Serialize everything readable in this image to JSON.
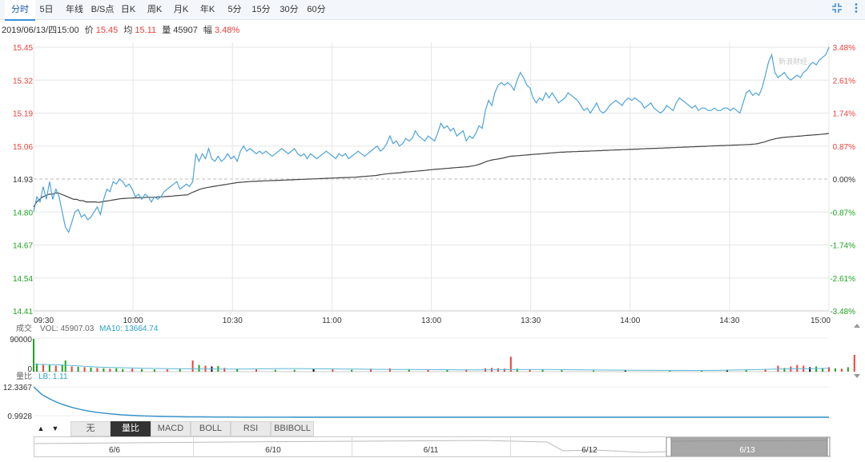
{
  "tabs": [
    "分时",
    "5日",
    "年线",
    "B/S点",
    "日K",
    "周K",
    "月K",
    "年K",
    "5分",
    "15分",
    "30分",
    "60分"
  ],
  "toolbar": {
    "collapse_icon": "collapse-icon",
    "more_icon": "more-icon"
  },
  "info": {
    "datetime": "2019/06/13/四15:00",
    "price_label": "价",
    "price": "15.45",
    "avg_label": "均",
    "avg": "15.11",
    "vol_label": "量",
    "vol": "45907",
    "pct_label": "幅",
    "pct": "3.48%"
  },
  "watermark": "新浪财经",
  "colors": {
    "price_line": "#4fa3d9",
    "avg_line": "#444444",
    "up": "#e8413b",
    "down": "#1ea21e",
    "flat": "#111111"
  },
  "chart_data": {
    "type": "line",
    "x_ticks": [
      "09:30",
      "10:00",
      "10:30",
      "11:00",
      "13:00",
      "13:30",
      "14:00",
      "14:30",
      "15:00"
    ],
    "y_ticks": [
      "15.45",
      "15.32",
      "15.19",
      "15.06",
      "14.93",
      "14.80",
      "14.67",
      "14.54",
      "14.41"
    ],
    "y_ticks_right": [
      "3.48%",
      "2.61%",
      "1.74%",
      "0.87%",
      "0.00%",
      "-0.87%",
      "-1.74%",
      "-2.61%",
      "-3.48%"
    ],
    "ylim": [
      14.41,
      15.45
    ],
    "prev_close": 14.93,
    "series": [
      {
        "values": [
          14.8,
          14.86,
          14.84,
          14.9,
          14.85,
          14.92,
          14.85,
          14.89,
          14.86,
          14.8,
          14.74,
          14.72,
          14.76,
          14.8,
          14.81,
          14.78,
          14.79,
          14.77,
          14.78,
          14.8,
          14.82,
          14.79,
          14.85,
          14.89,
          14.88,
          14.92,
          14.91,
          14.93,
          14.92,
          14.9,
          14.91,
          14.89,
          14.86,
          14.87,
          14.85,
          14.87,
          14.86,
          14.84,
          14.86,
          14.85,
          14.86,
          14.88,
          14.89,
          14.9,
          14.91,
          14.92,
          14.89,
          14.9,
          14.91,
          14.9,
          14.92,
          15.03,
          15.0,
          15.03,
          15.01,
          15.05,
          15.01,
          15.0,
          15.02,
          15.0,
          15.01,
          15.03,
          15.01,
          15.02,
          15.0,
          15.04,
          15.06,
          15.04,
          15.05,
          15.04,
          15.03,
          15.04,
          15.03,
          15.04,
          15.03,
          15.02,
          15.03,
          15.04,
          15.05,
          15.04,
          15.03,
          15.04,
          15.05,
          15.03,
          15.02,
          15.03,
          15.01,
          15.03,
          15.02,
          15.01,
          15.02,
          15.03,
          15.04,
          15.03,
          15.02,
          15.01,
          15.03,
          15.02,
          15.03,
          15.01,
          15.02,
          15.03,
          15.04,
          15.03,
          15.02,
          15.03,
          15.04,
          15.05,
          15.06,
          15.04,
          15.05,
          15.07,
          15.1,
          15.07,
          15.08,
          15.06,
          15.07,
          15.09,
          15.08,
          15.09,
          15.12,
          15.1,
          15.09,
          15.08,
          15.1,
          15.09,
          15.08,
          15.11,
          15.15,
          15.13,
          15.14,
          15.12,
          15.13,
          15.1,
          15.11,
          15.12,
          15.08,
          15.1,
          15.09,
          15.11,
          15.14,
          15.13,
          15.2,
          15.24,
          15.22,
          15.27,
          15.3,
          15.31,
          15.3,
          15.31,
          15.3,
          15.28,
          15.32,
          15.35,
          15.33,
          15.3,
          15.29,
          15.25,
          15.23,
          15.25,
          15.24,
          15.27,
          15.25,
          15.27,
          15.25,
          15.23,
          15.24,
          15.25,
          15.27,
          15.26,
          15.25,
          15.24,
          15.22,
          15.2,
          15.21,
          15.19,
          15.21,
          15.23,
          15.2,
          15.19,
          15.2,
          15.22,
          15.23,
          15.24,
          15.23,
          15.22,
          15.24,
          15.25,
          15.24,
          15.25,
          15.24,
          15.23,
          15.21,
          15.22,
          15.23,
          15.21,
          15.2,
          15.19,
          15.2,
          15.22,
          15.21,
          15.2,
          15.23,
          15.25,
          15.24,
          15.23,
          15.22,
          15.21,
          15.22,
          15.2,
          15.21,
          15.21,
          15.2,
          15.2,
          15.21,
          15.2,
          15.2,
          15.21,
          15.21,
          15.2,
          15.21,
          15.2,
          15.19,
          15.23,
          15.27,
          15.28,
          15.26,
          15.27,
          15.26,
          15.29,
          15.34,
          15.39,
          15.42,
          15.35,
          15.33,
          15.34,
          15.35,
          15.33,
          15.32,
          15.33,
          15.34,
          15.33,
          15.35,
          15.36,
          15.38,
          15.39,
          15.38,
          15.4,
          15.41,
          15.42,
          15.45
        ]
      },
      {
        "values": [
          14.82,
          14.84,
          14.85,
          14.86,
          14.865,
          14.87,
          14.87,
          14.875,
          14.875,
          14.87,
          14.865,
          14.86,
          14.855,
          14.85,
          14.85,
          14.845,
          14.845,
          14.84,
          14.84,
          14.84,
          14.84,
          14.838,
          14.84,
          14.842,
          14.844,
          14.846,
          14.848,
          14.85,
          14.852,
          14.853,
          14.854,
          14.855,
          14.855,
          14.856,
          14.856,
          14.857,
          14.857,
          14.858,
          14.858,
          14.858,
          14.859,
          14.86,
          14.86,
          14.861,
          14.862,
          14.863,
          14.864,
          14.865,
          14.866,
          14.867,
          14.868,
          14.875,
          14.88,
          14.885,
          14.89,
          14.893,
          14.896,
          14.898,
          14.9,
          14.902,
          14.904,
          14.906,
          14.908,
          14.91,
          14.912,
          14.914,
          14.916,
          14.917,
          14.918,
          14.919,
          14.92,
          14.921,
          14.921,
          14.922,
          14.922,
          14.923,
          14.923,
          14.924,
          14.924,
          14.925,
          14.925,
          14.926,
          14.926,
          14.927,
          14.927,
          14.928,
          14.928,
          14.929,
          14.929,
          14.93,
          14.93,
          14.931,
          14.931,
          14.932,
          14.932,
          14.933,
          14.933,
          14.934,
          14.934,
          14.935,
          14.935,
          14.936,
          14.936,
          14.937,
          14.937,
          14.938,
          14.939,
          14.94,
          14.941,
          14.942,
          14.943,
          14.944,
          14.946,
          14.948,
          14.95,
          14.951,
          14.952,
          14.953,
          14.954,
          14.955,
          14.957,
          14.958,
          14.959,
          14.96,
          14.961,
          14.962,
          14.963,
          14.964,
          14.966,
          14.967,
          14.968,
          14.969,
          14.97,
          14.971,
          14.972,
          14.973,
          14.974,
          14.975,
          14.976,
          14.977,
          14.978,
          14.979,
          14.981,
          14.983,
          14.986,
          14.99,
          14.995,
          15.0,
          15.003,
          15.006,
          15.008,
          15.01,
          15.012,
          15.015,
          15.018,
          15.02,
          15.021,
          15.022,
          15.023,
          15.024,
          15.025,
          15.026,
          15.027,
          15.028,
          15.029,
          15.03,
          15.031,
          15.032,
          15.033,
          15.034,
          15.035,
          15.036,
          15.036,
          15.037,
          15.037,
          15.038,
          15.038,
          15.039,
          15.039,
          15.04,
          15.04,
          15.041,
          15.041,
          15.042,
          15.042,
          15.043,
          15.043,
          15.044,
          15.044,
          15.045,
          15.045,
          15.046,
          15.046,
          15.047,
          15.047,
          15.048,
          15.048,
          15.049,
          15.049,
          15.05,
          15.05,
          15.051,
          15.051,
          15.052,
          15.052,
          15.053,
          15.053,
          15.054,
          15.054,
          15.055,
          15.055,
          15.056,
          15.056,
          15.057,
          15.057,
          15.058,
          15.058,
          15.059,
          15.059,
          15.06,
          15.06,
          15.061,
          15.061,
          15.062,
          15.062,
          15.063,
          15.063,
          15.064,
          15.064,
          15.065,
          15.065,
          15.066,
          15.066,
          15.067,
          15.068,
          15.07,
          15.073,
          15.076,
          15.08,
          15.084,
          15.087,
          15.09,
          15.092,
          15.094,
          15.095,
          15.096,
          15.097,
          15.098,
          15.099,
          15.1,
          15.101,
          15.102,
          15.103,
          15.104,
          15.105,
          15.106,
          15.107,
          15.108,
          15.11
        ]
      }
    ]
  },
  "volume": {
    "title_label": "成交",
    "vol_text": "VOL: 45907.03",
    "ma_text": "MA10: 13664.74",
    "y_ticks": [
      "90000",
      "0"
    ],
    "ylim": [
      0,
      90000
    ],
    "bars": [
      {
        "i": 0,
        "v": 88000,
        "c": "g"
      },
      {
        "i": 1,
        "v": 22000,
        "c": "g"
      },
      {
        "i": 3,
        "v": 20000,
        "c": "r"
      },
      {
        "i": 5,
        "v": 18000,
        "c": "g"
      },
      {
        "i": 7,
        "v": 16000,
        "c": "r"
      },
      {
        "i": 9,
        "v": 19000,
        "c": "g"
      },
      {
        "i": 10,
        "v": 30000,
        "c": "g"
      },
      {
        "i": 12,
        "v": 14000,
        "c": "r"
      },
      {
        "i": 14,
        "v": 13000,
        "c": "g"
      },
      {
        "i": 16,
        "v": 12000,
        "c": "r"
      },
      {
        "i": 18,
        "v": 11000,
        "c": "g"
      },
      {
        "i": 20,
        "v": 10000,
        "c": "r"
      },
      {
        "i": 22,
        "v": 9000,
        "c": "g"
      },
      {
        "i": 24,
        "v": 8000,
        "c": "r"
      },
      {
        "i": 26,
        "v": 9000,
        "c": "g"
      },
      {
        "i": 28,
        "v": 7000,
        "c": "g"
      },
      {
        "i": 31,
        "v": 8000,
        "c": "r"
      },
      {
        "i": 34,
        "v": 7000,
        "c": "g"
      },
      {
        "i": 38,
        "v": 6000,
        "c": "g"
      },
      {
        "i": 42,
        "v": 6000,
        "c": "r"
      },
      {
        "i": 46,
        "v": 7000,
        "c": "g"
      },
      {
        "i": 50,
        "v": 30000,
        "c": "r"
      },
      {
        "i": 52,
        "v": 18000,
        "c": "g"
      },
      {
        "i": 54,
        "v": 16000,
        "c": "r"
      },
      {
        "i": 56,
        "v": 14000,
        "c": "k"
      },
      {
        "i": 58,
        "v": 15000,
        "c": "g"
      },
      {
        "i": 60,
        "v": 10000,
        "c": "r"
      },
      {
        "i": 64,
        "v": 8000,
        "c": "g"
      },
      {
        "i": 70,
        "v": 6000,
        "c": "r"
      },
      {
        "i": 76,
        "v": 5000,
        "c": "g"
      },
      {
        "i": 82,
        "v": 5000,
        "c": "g"
      },
      {
        "i": 88,
        "v": 7000,
        "c": "k"
      },
      {
        "i": 94,
        "v": 6000,
        "c": "r"
      },
      {
        "i": 100,
        "v": 5000,
        "c": "g"
      },
      {
        "i": 106,
        "v": 8000,
        "c": "r"
      },
      {
        "i": 112,
        "v": 9000,
        "c": "r"
      },
      {
        "i": 118,
        "v": 7000,
        "c": "g"
      },
      {
        "i": 124,
        "v": 6000,
        "c": "r"
      },
      {
        "i": 130,
        "v": 5000,
        "c": "g"
      },
      {
        "i": 136,
        "v": 6000,
        "c": "r"
      },
      {
        "i": 142,
        "v": 9000,
        "c": "r"
      },
      {
        "i": 144,
        "v": 10000,
        "c": "r"
      },
      {
        "i": 146,
        "v": 9000,
        "c": "r"
      },
      {
        "i": 148,
        "v": 8000,
        "c": "r"
      },
      {
        "i": 150,
        "v": 40000,
        "c": "r"
      },
      {
        "i": 152,
        "v": 8000,
        "c": "g"
      },
      {
        "i": 156,
        "v": 6000,
        "c": "r"
      },
      {
        "i": 160,
        "v": 5000,
        "c": "g"
      },
      {
        "i": 166,
        "v": 4000,
        "c": "g"
      },
      {
        "i": 176,
        "v": 3000,
        "c": "g"
      },
      {
        "i": 186,
        "v": 3000,
        "c": "k"
      },
      {
        "i": 200,
        "v": 2500,
        "c": "g"
      },
      {
        "i": 210,
        "v": 2500,
        "c": "g"
      },
      {
        "i": 218,
        "v": 4000,
        "c": "k"
      },
      {
        "i": 224,
        "v": 5000,
        "c": "g"
      },
      {
        "i": 230,
        "v": 6000,
        "c": "r"
      },
      {
        "i": 234,
        "v": 16000,
        "c": "r"
      },
      {
        "i": 236,
        "v": 10000,
        "c": "g"
      },
      {
        "i": 238,
        "v": 14000,
        "c": "r"
      },
      {
        "i": 240,
        "v": 18000,
        "c": "r"
      },
      {
        "i": 242,
        "v": 16000,
        "c": "r"
      },
      {
        "i": 244,
        "v": 12000,
        "c": "k"
      },
      {
        "i": 246,
        "v": 14000,
        "c": "g"
      },
      {
        "i": 248,
        "v": 10000,
        "c": "g"
      },
      {
        "i": 250,
        "v": 12000,
        "c": "r"
      },
      {
        "i": 252,
        "v": 9000,
        "c": "g"
      },
      {
        "i": 254,
        "v": 8000,
        "c": "r"
      },
      {
        "i": 256,
        "v": 12000,
        "c": "g"
      },
      {
        "i": 258,
        "v": 45000,
        "c": "r"
      }
    ],
    "ma_values": [
      20000,
      19000,
      18000,
      16000,
      14000,
      12000,
      11000,
      10000,
      9000,
      8500,
      8000,
      7800,
      7500,
      7200,
      7000,
      7000,
      7200,
      7800,
      8000,
      8300,
      8200,
      7800,
      7400,
      7000,
      6800,
      6500,
      6300,
      6000,
      5800,
      5500,
      5300,
      5200,
      5000,
      5000,
      5100,
      5400,
      5600,
      5700,
      5800,
      5500,
      5200,
      4800,
      4500,
      4200,
      4000,
      3800,
      3600,
      3500,
      3400,
      3300,
      3400,
      3800,
      4400,
      5200,
      6000,
      6800,
      7400,
      7800,
      8200,
      9500
    ]
  },
  "lb": {
    "title_label": "量比",
    "lb_text": "LB: 1.11",
    "y_ticks": [
      "12.3367",
      "0.9928"
    ]
  },
  "indicator_tabs": [
    "无",
    "量比",
    "MACD",
    "BOLL",
    "RSI",
    "BBIBOLL"
  ],
  "indicator_selected": 1,
  "navigator": {
    "dates": [
      "6/6",
      "6/10",
      "6/11",
      "6/12",
      "6/13"
    ]
  }
}
